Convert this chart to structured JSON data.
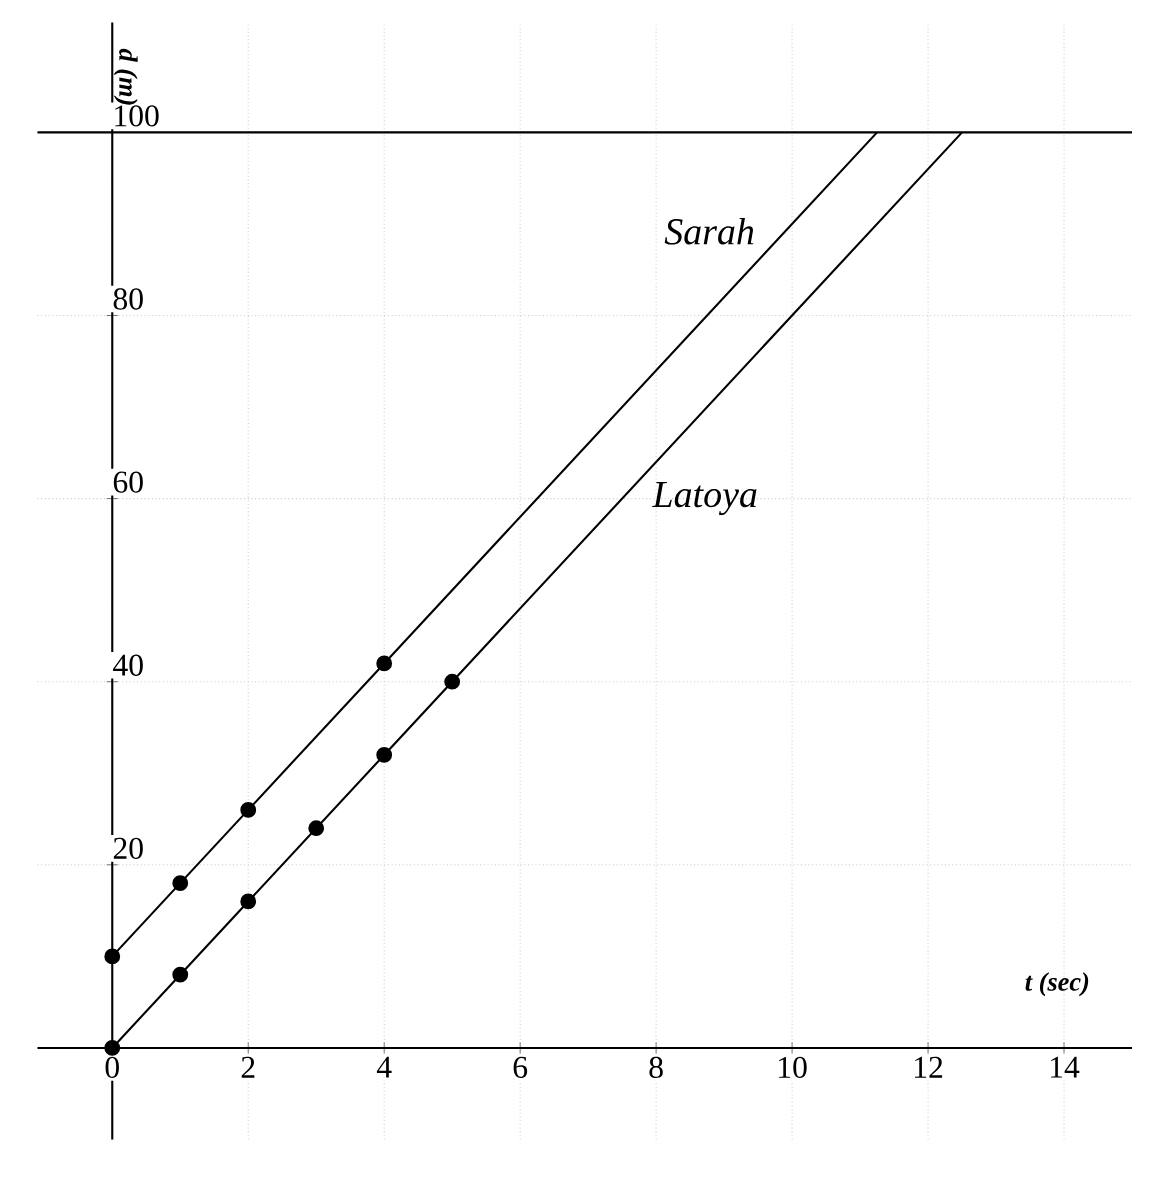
{
  "chart_data": {
    "type": "line",
    "xlabel": "t (sec)",
    "ylabel": "d (m)",
    "xlim": [
      -1.1,
      15
    ],
    "ylim": [
      -10,
      112
    ],
    "xticks": [
      0,
      2,
      4,
      6,
      8,
      10,
      12,
      14
    ],
    "yticks": [
      20,
      40,
      60,
      80,
      100
    ],
    "grid": true,
    "series": [
      {
        "name": "Sarah",
        "color": "#000000",
        "marker": "circle",
        "x": [
          0,
          1,
          2,
          4,
          11.25
        ],
        "values": [
          10,
          18,
          26,
          42,
          100
        ]
      },
      {
        "name": "Latoya",
        "color": "#000000",
        "marker": "circle",
        "x": [
          0,
          1,
          2,
          3,
          4,
          5,
          12.5
        ],
        "values": [
          0,
          8,
          16,
          24,
          32,
          40,
          100
        ]
      }
    ],
    "ref_lines": [
      {
        "axis": "y",
        "value": 100,
        "color": "#000000"
      }
    ]
  }
}
